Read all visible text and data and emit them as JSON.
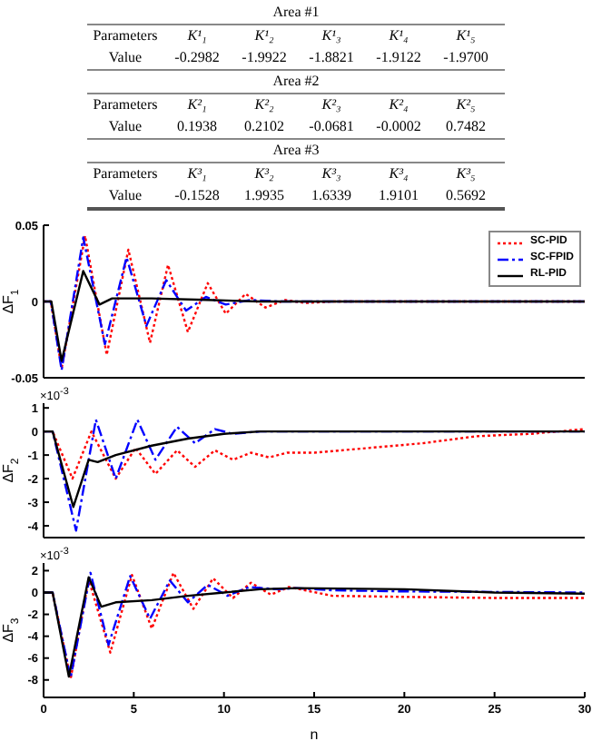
{
  "chart_data": [
    {
      "type": "other",
      "title": "Area #1",
      "y_categories": [
        "Parameters",
        "Value"
      ],
      "cell_labels": [
        [
          "K¹₁",
          "K¹₂",
          "K¹₃",
          "K¹₄",
          "K¹₅"
        ],
        [
          "-0.2982",
          "-1.9922",
          "-1.8821",
          "-1.9122",
          "-1.9700"
        ]
      ]
    },
    {
      "type": "other",
      "title": "Area #2",
      "y_categories": [
        "Parameters",
        "Value"
      ],
      "cell_labels": [
        [
          "K²₁",
          "K²₂",
          "K²₃",
          "K²₄",
          "K²₅"
        ],
        [
          "0.1938",
          "0.2102",
          "-0.0681",
          "-0.0002",
          "0.7482"
        ]
      ]
    },
    {
      "type": "other",
      "title": "Area #3",
      "y_categories": [
        "Parameters",
        "Value"
      ],
      "cell_labels": [
        [
          "K³₁",
          "K³₂",
          "K³₃",
          "K³₄",
          "K³₅"
        ],
        [
          "-0.1528",
          "1.9935",
          "1.6339",
          "1.9101",
          "0.5692"
        ]
      ]
    },
    {
      "type": "line",
      "ylabel": "ΔF$_{1}$",
      "xlim": [
        0,
        30
      ],
      "ylim": [
        -0.05,
        0.05
      ],
      "yticks": [
        -0.05,
        0,
        0.05
      ],
      "tick_labels": "y",
      "legend": "top right",
      "series": [
        {
          "name": "SC-PID",
          "color": "#ff0000",
          "line_style": "dotted",
          "x": [
            0,
            0.4,
            1.0,
            2.3,
            3.5,
            4.7,
            5.9,
            6.9,
            8.0,
            9.1,
            10.1,
            11.2,
            12.3,
            13.4,
            14.5,
            16,
            30
          ],
          "values": [
            0,
            0,
            -0.044,
            0.043,
            -0.035,
            0.034,
            -0.027,
            0.024,
            -0.02,
            0.012,
            -0.008,
            0.005,
            -0.004,
            0.001,
            -0.001,
            0,
            0
          ]
        },
        {
          "name": "SC-FPID",
          "color": "#0000ff",
          "line_style": "dashed",
          "x": [
            0,
            0.4,
            1.0,
            2.2,
            3.4,
            4.6,
            5.7,
            6.8,
            7.9,
            9.0,
            10.1,
            11.5,
            13,
            30
          ],
          "values": [
            0,
            0,
            -0.045,
            0.042,
            -0.028,
            0.029,
            -0.016,
            0.014,
            -0.006,
            0.003,
            -0.002,
            0.001,
            0,
            0
          ]
        },
        {
          "name": "RL-PID",
          "color": "#000000",
          "line_style": "solid",
          "x": [
            0,
            0.43,
            1.0,
            2.2,
            3.1,
            3.8,
            6,
            9,
            12,
            30
          ],
          "values": [
            0,
            0,
            -0.039,
            0.02,
            -0.002,
            0.002,
            0.002,
            0.001,
            0,
            0
          ]
        }
      ]
    },
    {
      "type": "line",
      "ylabel": "ΔF$_{2}$",
      "annotations": [
        "×10$^{-3}$"
      ],
      "xlim": [
        0,
        30
      ],
      "ylim": [
        -4.5,
        1.2
      ],
      "yticks": [
        -4,
        -3,
        -2,
        -1,
        0,
        1
      ],
      "tick_labels": "y",
      "series": [
        {
          "color": "#ff0000",
          "line_style": "dotted",
          "x": [
            0,
            0.5,
            1.6,
            2.65,
            4.0,
            5.1,
            6.2,
            7.4,
            8.4,
            9.5,
            10.5,
            11.5,
            12.5,
            13.5,
            15,
            18,
            21,
            24,
            27,
            30
          ],
          "values": [
            0,
            0,
            -2.0,
            0,
            -2.0,
            -0.7,
            -1.8,
            -0.8,
            -1.5,
            -0.8,
            -1.2,
            -0.9,
            -1.1,
            -0.9,
            -0.9,
            -0.7,
            -0.5,
            -0.2,
            -0.1,
            0.1
          ]
        },
        {
          "color": "#0000ff",
          "line_style": "dashed",
          "x": [
            0,
            0.5,
            1.8,
            2.9,
            4.0,
            5.2,
            6.2,
            7.4,
            8.4,
            9.5,
            10.5,
            12,
            30
          ],
          "values": [
            0,
            0,
            -4.2,
            0.5,
            -2.0,
            0.5,
            -1.2,
            0.2,
            -0.5,
            0.1,
            -0.1,
            0,
            0
          ]
        },
        {
          "color": "#000000",
          "line_style": "solid",
          "x": [
            0,
            0.5,
            1.65,
            2.5,
            3.0,
            4,
            6,
            8,
            10,
            12,
            30
          ],
          "values": [
            0,
            0,
            -3.2,
            -1.2,
            -1.3,
            -1.0,
            -0.6,
            -0.3,
            -0.1,
            0,
            0
          ]
        }
      ]
    },
    {
      "type": "line",
      "ylabel": "ΔF$_{3}$",
      "xlabel": "n",
      "annotations": [
        "×10$^{-3}$"
      ],
      "xlim": [
        0,
        30
      ],
      "ylim": [
        -9.6,
        2.7
      ],
      "xticks": [
        0,
        5,
        10,
        15,
        20,
        25,
        30
      ],
      "yticks": [
        -8,
        -6,
        -4,
        -2,
        0,
        2
      ],
      "series": [
        {
          "color": "#ff0000",
          "line_style": "dotted",
          "x": [
            0,
            0.5,
            1.5,
            2.5,
            3.7,
            4.9,
            6.0,
            7.2,
            8.3,
            9.4,
            10.5,
            11.5,
            12.6,
            13.6,
            16,
            20,
            25,
            30
          ],
          "values": [
            0,
            0,
            -7.9,
            1.2,
            -5.5,
            1.6,
            -3.3,
            1.8,
            -1.5,
            1.3,
            -0.5,
            0.9,
            -0.2,
            0.5,
            -0.3,
            -0.4,
            -0.5,
            -0.5
          ]
        },
        {
          "color": "#0000ff",
          "line_style": "dashed",
          "x": [
            0,
            0.5,
            1.5,
            2.6,
            3.6,
            4.8,
            5.9,
            7.0,
            8.0,
            9.1,
            10.2,
            11.4,
            13,
            14,
            16,
            20,
            30
          ],
          "values": [
            0,
            0,
            -7.8,
            1.8,
            -4.8,
            1.5,
            -2.4,
            1.1,
            -0.9,
            0.7,
            -0.3,
            0.5,
            0.3,
            0.4,
            0.2,
            0.1,
            0
          ]
        },
        {
          "color": "#000000",
          "line_style": "solid",
          "x": [
            0,
            0.5,
            1.4,
            2.5,
            3.2,
            4,
            6,
            8,
            10,
            12,
            14,
            20,
            25,
            30
          ],
          "values": [
            0,
            0,
            -7.7,
            1.4,
            -1.3,
            -0.9,
            -0.7,
            -0.3,
            0,
            0.3,
            0.4,
            0.3,
            0,
            -0.1
          ]
        }
      ]
    }
  ]
}
